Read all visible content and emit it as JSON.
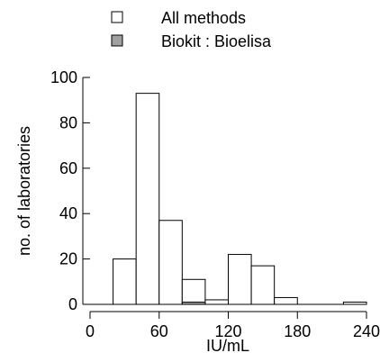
{
  "chart_data": {
    "type": "bar",
    "title": "",
    "xlabel": "IU/mL",
    "ylabel": "no. of laboratories",
    "bin_width": 20,
    "bin_starts": [
      20,
      40,
      60,
      80,
      100,
      120,
      140,
      160,
      180,
      200,
      220
    ],
    "xlim": [
      0,
      240
    ],
    "ylim": [
      0,
      100
    ],
    "x_ticks": [
      0,
      60,
      120,
      180,
      240
    ],
    "y_ticks": [
      0,
      20,
      40,
      60,
      80,
      100
    ],
    "x_tick_labels": [
      "0",
      "60",
      "120",
      "180",
      "240"
    ],
    "y_tick_labels": [
      "0",
      "20",
      "40",
      "60",
      "80",
      "100"
    ],
    "legend_position": "top",
    "series": [
      {
        "name": "All methods",
        "color": "#ffffff",
        "values": [
          20,
          93,
          37,
          11,
          2,
          22,
          17,
          3,
          0,
          0,
          1
        ]
      },
      {
        "name": "Biokit : Bioelisa",
        "color": "#a0a0a0",
        "values": [
          0,
          0,
          0,
          1,
          0,
          0,
          0,
          0,
          0,
          0,
          0
        ]
      }
    ]
  }
}
